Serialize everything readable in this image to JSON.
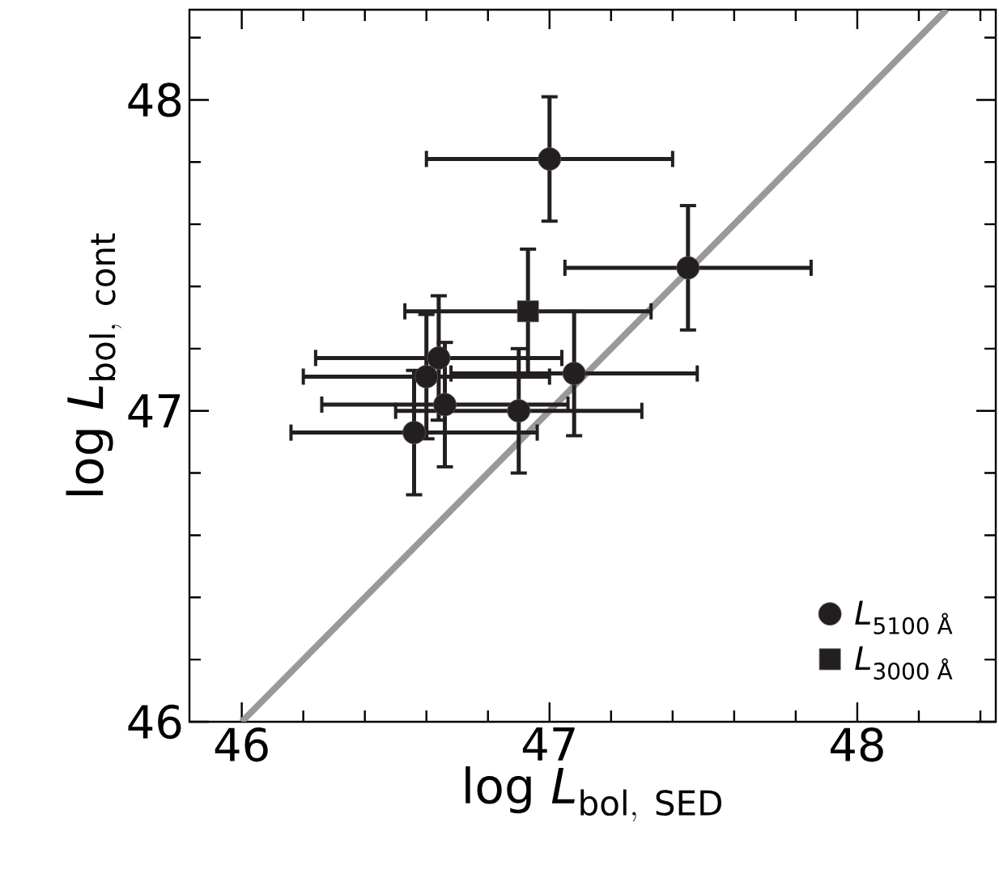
{
  "chart_data": {
    "type": "scatter",
    "xlabel": "\\mathrm{log}\\ \\mathit{L}_{\\mathrm{bol,\\ SED}}",
    "ylabel": "\\mathrm{log}\\ \\mathit{L}_{\\mathrm{bol,\\ cont}}",
    "xlim": [
      45.83,
      48.45
    ],
    "ylim": [
      46,
      48.29
    ],
    "xticks": [
      46,
      {
        "value": 46.2,
        "label": null
      },
      {
        "value": 46.4,
        "label": null
      },
      {
        "value": 46.6,
        "label": null
      },
      {
        "value": 46.8,
        "label": null
      },
      47,
      {
        "value": 47.2,
        "label": null
      },
      {
        "value": 47.4,
        "label": null
      },
      {
        "value": 47.6,
        "label": null
      },
      {
        "value": 47.8,
        "label": null
      },
      48,
      {
        "value": 48.2,
        "label": null
      },
      {
        "value": 48.4,
        "label": null
      }
    ],
    "yticks": [
      46,
      {
        "value": 46.2,
        "label": null
      },
      {
        "value": 46.4,
        "label": null
      },
      {
        "value": 46.6,
        "label": null
      },
      {
        "value": 46.8,
        "label": null
      },
      47,
      {
        "value": 47.2,
        "label": null
      },
      {
        "value": 47.4,
        "label": null
      },
      {
        "value": 47.6,
        "label": null
      },
      {
        "value": 47.8,
        "label": null
      },
      48,
      {
        "value": 48.2,
        "label": null
      }
    ],
    "legend": "bottom right",
    "grid": false,
    "series": [
      {
        "type": "line",
        "color": "#999999",
        "line_style": "solid",
        "marker": "none",
        "x": [
          46,
          48.29
        ],
        "values": [
          46,
          48.29
        ]
      },
      {
        "name": "*L*$_{5100 Å}$",
        "marker": "circle",
        "color": "#231f20",
        "x": [
          47.0,
          47.45,
          47.08,
          46.6,
          46.64,
          46.66,
          46.9,
          46.56
        ],
        "values": [
          47.81,
          47.46,
          47.12,
          47.11,
          47.17,
          47.02,
          47.0,
          46.93
        ],
        "xerrors": [
          0.4,
          0.4,
          0.4,
          0.4,
          0.4,
          0.4,
          0.4,
          0.4
        ],
        "errors": [
          0.2,
          0.2,
          0.2,
          0.2,
          0.2,
          0.2,
          0.2,
          0.2
        ]
      },
      {
        "name": "*L*$_{3000 Å}$",
        "marker": "square",
        "color": "#231f20",
        "x": [
          46.93
        ],
        "values": [
          47.32
        ],
        "xerrors": [
          0.4
        ],
        "errors": [
          0.2
        ]
      }
    ]
  }
}
